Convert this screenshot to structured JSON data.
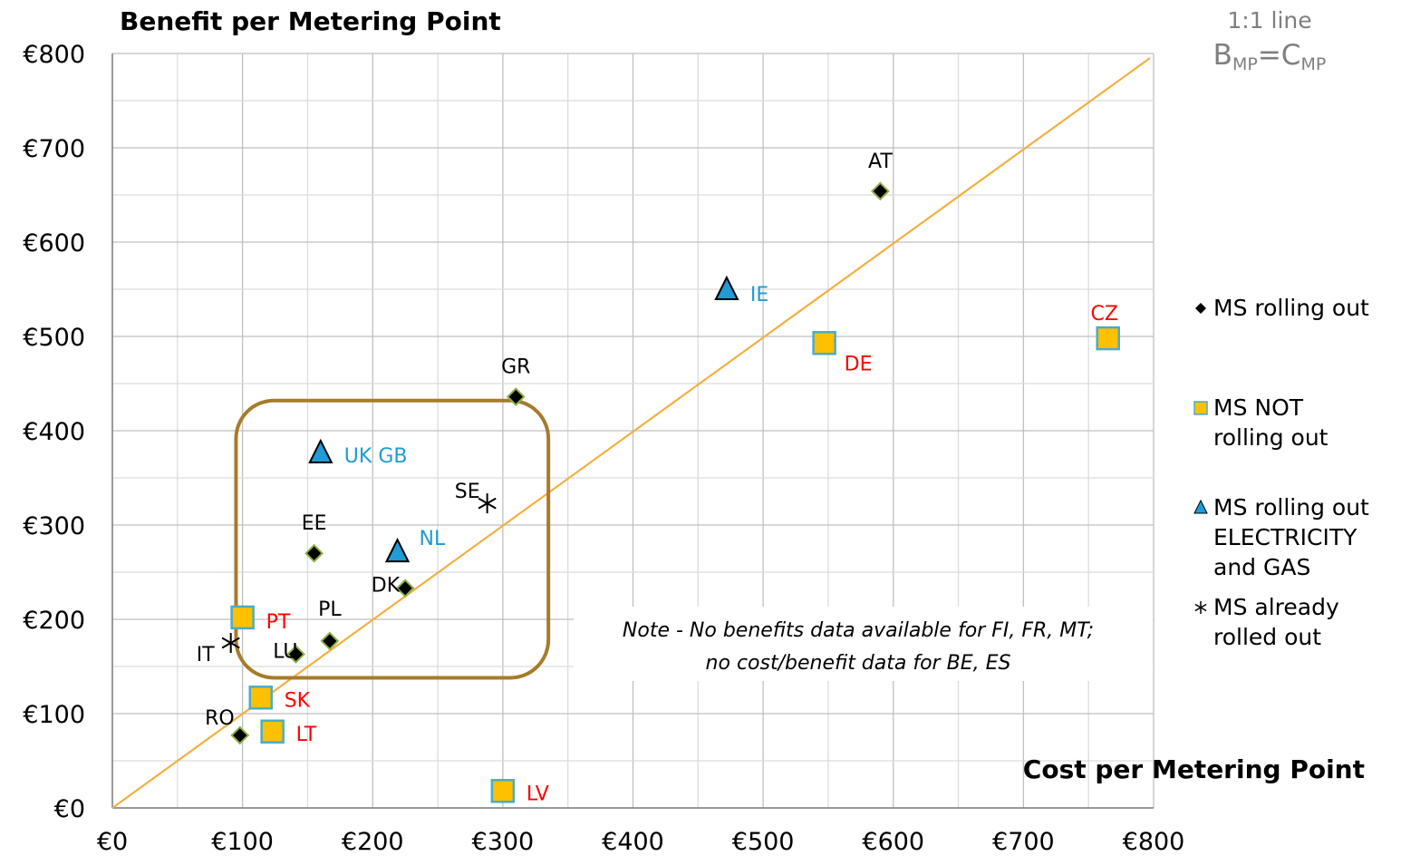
{
  "chart_data": {
    "type": "scatter",
    "title": "Benefit per Metering Point",
    "xlabel": "Cost per Metering Point",
    "ylabel": "Benefit per Metering Point",
    "xlim": [
      0,
      800
    ],
    "ylim": [
      0,
      800
    ],
    "x_ticks": [
      "€0",
      "€100",
      "€200",
      "€300",
      "€400",
      "€500",
      "€600",
      "€700",
      "€800"
    ],
    "y_ticks": [
      "€0",
      "€100",
      "€200",
      "€300",
      "€400",
      "€500",
      "€600",
      "€700",
      "€800"
    ],
    "grid": true,
    "legend_position": "right",
    "series": [
      {
        "name": "MS rolling out",
        "marker": "diamond",
        "color": "#000000",
        "edge_color": "#8db14a",
        "label_color": "#000000",
        "points": [
          {
            "label": "AT",
            "x": 590,
            "y": 654
          },
          {
            "label": "GR",
            "x": 310,
            "y": 436
          },
          {
            "label": "EE",
            "x": 155,
            "y": 270
          },
          {
            "label": "DK",
            "x": 225,
            "y": 233
          },
          {
            "label": "PL",
            "x": 167,
            "y": 177
          },
          {
            "label": "LU",
            "x": 141,
            "y": 163
          },
          {
            "label": "RO",
            "x": 98,
            "y": 77
          }
        ]
      },
      {
        "name": "MS NOT rolling out",
        "marker": "square",
        "color": "#ffc000",
        "edge_color": "#4bacc6",
        "label_color": "#ff0000",
        "points": [
          {
            "label": "CZ",
            "x": 765,
            "y": 498
          },
          {
            "label": "DE",
            "x": 547,
            "y": 493
          },
          {
            "label": "PT",
            "x": 100,
            "y": 202
          },
          {
            "label": "SK",
            "x": 114,
            "y": 117
          },
          {
            "label": "LT",
            "x": 123,
            "y": 81
          },
          {
            "label": "LV",
            "x": 300,
            "y": 18
          }
        ]
      },
      {
        "name": "MS rolling out ELECTRICITY and GAS",
        "marker": "triangle",
        "color": "#1f9bd6",
        "edge_color": "#000000",
        "label_color": "#1f9bd6",
        "points": [
          {
            "label": "IE",
            "x": 472,
            "y": 549
          },
          {
            "label": "UK GB",
            "x": 160,
            "y": 376
          },
          {
            "label": "NL",
            "x": 219,
            "y": 271
          }
        ]
      },
      {
        "name": "MS already rolled out",
        "marker": "asterisk",
        "color": "#000000",
        "label_color": "#000000",
        "points": [
          {
            "label": "SE",
            "x": 288,
            "y": 323
          },
          {
            "label": "IT",
            "x": 91,
            "y": 175
          }
        ]
      }
    ],
    "reference_line": {
      "name": "1:1 line",
      "formula": {
        "b": "B",
        "b_sub": "MP",
        "eq": "=",
        "c": "C",
        "c_sub": "MP"
      },
      "from": [
        0,
        0
      ],
      "to": [
        800,
        800
      ],
      "color": "#f4b041"
    },
    "highlight_box": {
      "x_range": [
        95,
        335
      ],
      "y_range": [
        138,
        432
      ],
      "color": "#a67c2a"
    },
    "note": [
      "Note - No benefits data available for FI, FR, MT;",
      "no cost/benefit data for BE, ES"
    ]
  },
  "legend": [
    {
      "series": 0,
      "lines": [
        "MS rolling out"
      ]
    },
    {
      "series": 1,
      "lines": [
        "MS NOT",
        "rolling out"
      ]
    },
    {
      "series": 2,
      "lines": [
        "MS rolling out",
        "ELECTRICITY",
        "and GAS"
      ]
    },
    {
      "series": 3,
      "lines": [
        "MS already",
        "rolled out"
      ]
    }
  ]
}
